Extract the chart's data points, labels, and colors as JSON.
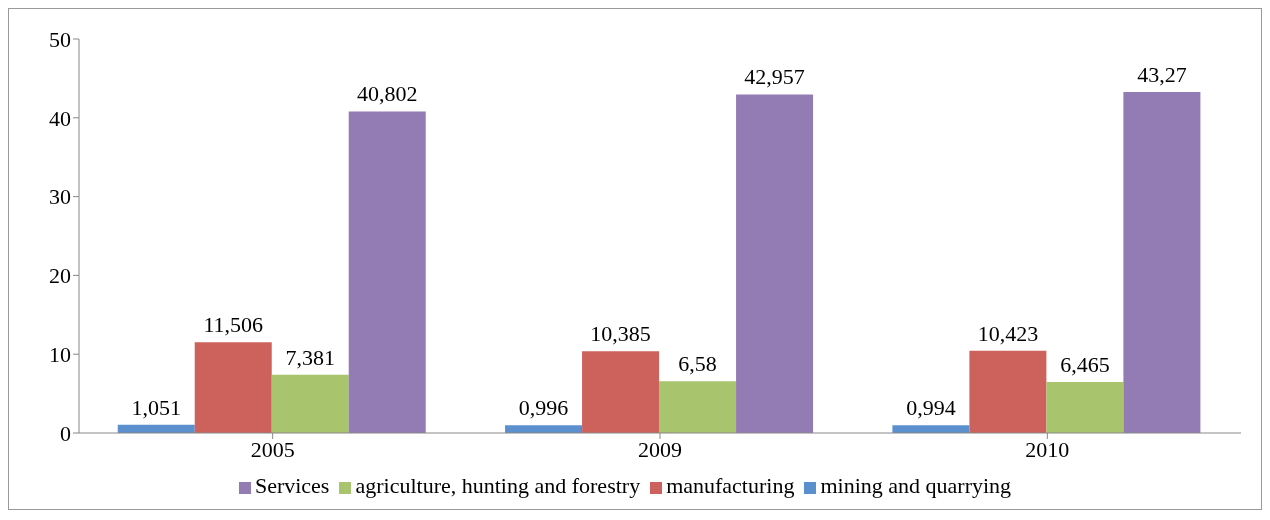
{
  "chart_data": {
    "type": "bar",
    "categories": [
      "2005",
      "2009",
      "2010"
    ],
    "series": [
      {
        "name": "mining and quarrying",
        "color": "#5b8fce",
        "values": [
          1.051,
          0.996,
          0.994
        ],
        "value_labels": [
          "1,051",
          "0,996",
          "0,994"
        ]
      },
      {
        "name": "manufacturing",
        "color": "#cd615b",
        "values": [
          11.506,
          10.385,
          10.423
        ],
        "value_labels": [
          "11,506",
          "10,385",
          "10,423"
        ]
      },
      {
        "name": "agriculture, hunting and forestry",
        "color": "#a8c46d",
        "values": [
          7.381,
          6.58,
          6.465
        ],
        "value_labels": [
          "7,381",
          "6,58",
          "6,465"
        ]
      },
      {
        "name": "Services",
        "color": "#937bb3",
        "values": [
          40.802,
          42.957,
          43.27
        ],
        "value_labels": [
          "40,802",
          "42,957",
          "43,27"
        ]
      }
    ],
    "ylim": [
      0,
      50
    ],
    "yticks": [
      0,
      10,
      20,
      30,
      40,
      50
    ],
    "grid": false,
    "legend": "bottom"
  }
}
